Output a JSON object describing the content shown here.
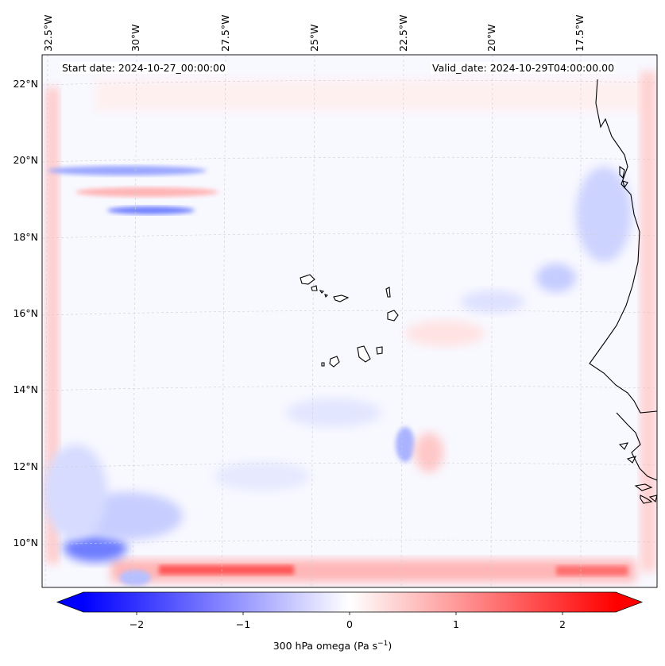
{
  "map": {
    "start_date_label": "Start date: 2024-10-27_00:00:00",
    "valid_date_label": "Valid_date: 2024-10-29T04:00:00.00",
    "longitude_labels": [
      "32.5°W",
      "30°W",
      "27.5°W",
      "25°W",
      "22.5°W",
      "20°W",
      "17.5°W"
    ],
    "latitude_labels": [
      "22°N",
      "20°N",
      "18°N",
      "16°N",
      "14°N",
      "12°N",
      "10°N"
    ],
    "field": "300 hPa omega",
    "colormap": "bwr",
    "colors": {
      "negative": "#0000ff",
      "zero": "#ffffff",
      "positive": "#ff0000",
      "coastline": "#000000",
      "grid": "#c8c8c8"
    }
  },
  "colorbar": {
    "ticks": [
      "−2",
      "−1",
      "0",
      "1",
      "2"
    ],
    "label_text": "300 hPa omega (Pa s",
    "label_superscript": "−1",
    "label_suffix": ")",
    "range": [
      -2.75,
      2.75
    ],
    "extend": "both"
  }
}
